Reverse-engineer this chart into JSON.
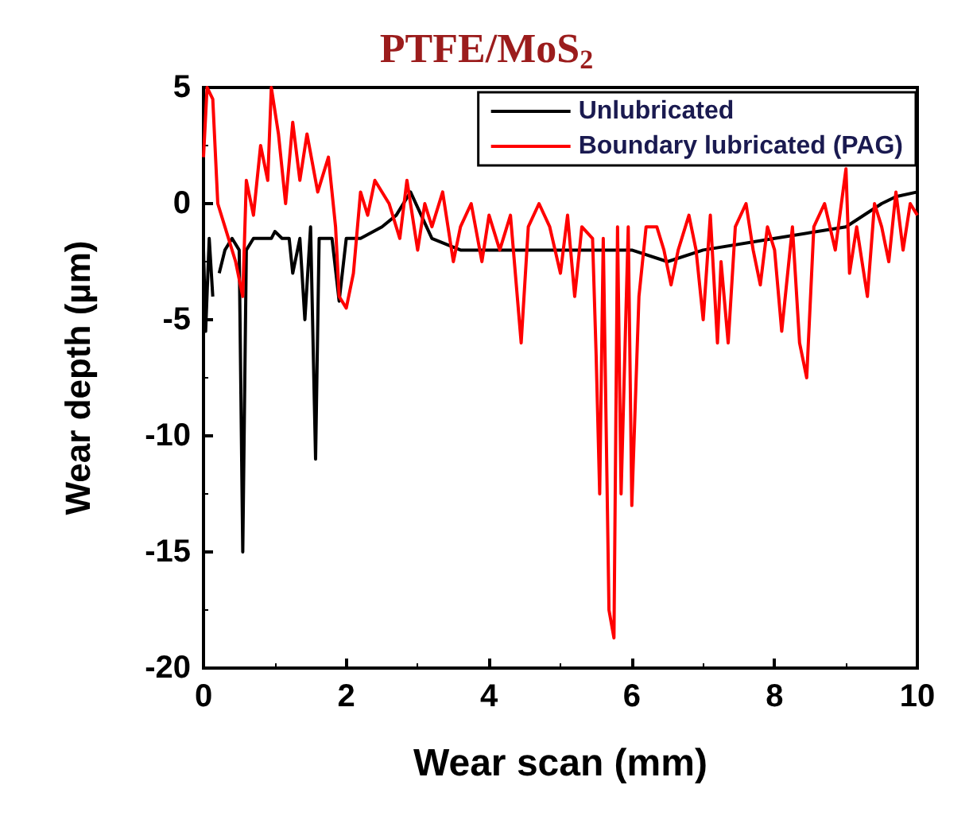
{
  "chart_data": {
    "type": "line",
    "title": "PTFE/MoS$_{2}$",
    "xlabel": "Wear scan (mm)",
    "ylabel": "Wear depth (µm)",
    "xlim": [
      0,
      10
    ],
    "xticks": [
      0,
      2,
      4,
      6,
      8,
      10
    ],
    "ylim": [
      -20,
      5
    ],
    "yticks": [
      -20,
      -15,
      -10,
      -5,
      0,
      5
    ],
    "grid": false,
    "legend": "top right",
    "marker": "none",
    "line_style": "solid",
    "series": [
      {
        "name": "Unlubricated",
        "color": "#000000",
        "x": [
          0,
          0.03,
          0.08,
          0.13,
          0.17,
          0.22,
          0.3,
          0.4,
          0.5,
          0.55,
          0.6,
          0.7,
          0.8,
          0.95,
          1.0,
          1.1,
          1.2,
          1.25,
          1.35,
          1.42,
          1.5,
          1.57,
          1.62,
          1.8,
          1.9,
          2.0,
          2.2,
          2.5,
          2.7,
          2.9,
          3.2,
          3.6,
          4.5,
          5.5,
          6,
          6.5,
          7,
          8,
          9,
          9.5,
          9.7,
          10
        ],
        "values": [
          -2,
          -5.5,
          -1.5,
          -4,
          null,
          -3,
          -2,
          -1.5,
          -2,
          -15,
          -2,
          -1.5,
          -1.5,
          -1.5,
          -1.2,
          -1.5,
          -1.5,
          -3,
          -1.5,
          -5,
          -1,
          -11,
          -1.5,
          -1.5,
          -4.2,
          -1.5,
          -1.5,
          -1,
          -0.5,
          0.5,
          -1.5,
          -2,
          -2,
          -2,
          -2,
          -2.5,
          -2,
          -1.5,
          -1,
          0,
          0.3,
          0.5
        ]
      },
      {
        "name": "Boundary lubricated (PAG)",
        "color": "#ff0000",
        "x": [
          0,
          0.05,
          0.13,
          0.2,
          0.3,
          0.45,
          0.55,
          0.6,
          0.7,
          0.8,
          0.9,
          0.95,
          1.05,
          1.15,
          1.25,
          1.35,
          1.45,
          1.6,
          1.75,
          1.85,
          1.9,
          2.0,
          2.1,
          2.2,
          2.3,
          2.4,
          2.6,
          2.75,
          2.85,
          3.0,
          3.1,
          3.2,
          3.35,
          3.5,
          3.6,
          3.75,
          3.9,
          4.0,
          4.15,
          4.3,
          4.45,
          4.55,
          4.7,
          4.85,
          5.0,
          5.1,
          5.2,
          5.3,
          5.45,
          5.5,
          5.55,
          5.6,
          5.68,
          5.75,
          5.8,
          5.85,
          5.95,
          6.0,
          6.1,
          6.2,
          6.35,
          6.45,
          6.55,
          6.65,
          6.8,
          6.9,
          7.0,
          7.1,
          7.2,
          7.25,
          7.35,
          7.45,
          7.6,
          7.7,
          7.8,
          7.9,
          8.0,
          8.1,
          8.25,
          8.35,
          8.45,
          8.55,
          8.7,
          8.85,
          9.0,
          9.05,
          9.15,
          9.3,
          9.4,
          9.5,
          9.6,
          9.7,
          9.8,
          9.9,
          10
        ],
        "values": [
          2,
          5,
          4.5,
          0,
          -1,
          -2.5,
          -4,
          1,
          -0.5,
          2.5,
          1,
          5,
          3,
          0,
          3.5,
          1,
          3,
          0.5,
          2,
          -1,
          -4,
          -4.5,
          -3,
          0.5,
          -0.5,
          1,
          0,
          -1.5,
          1,
          -2,
          0,
          -1,
          0.5,
          -2.5,
          -1,
          0,
          -2.5,
          -0.5,
          -2,
          -0.5,
          -6,
          -1,
          0,
          -1,
          -3,
          -0.5,
          -4,
          -1,
          -1.5,
          -6.5,
          -12.5,
          -1.5,
          -17.5,
          -18.7,
          -1,
          -12.5,
          -1,
          -13,
          -4,
          -1,
          -1,
          -2,
          -3.5,
          -2,
          -0.5,
          -2,
          -5,
          -0.5,
          -6,
          -2.5,
          -6,
          -1,
          0,
          -2,
          -3.5,
          -1,
          -2,
          -5.5,
          -1,
          -6,
          -7.5,
          -1,
          0,
          -2,
          1.5,
          -3,
          -1,
          -4,
          0,
          -1,
          -2.5,
          0.5,
          -2,
          0,
          -0.5
        ]
      }
    ]
  }
}
